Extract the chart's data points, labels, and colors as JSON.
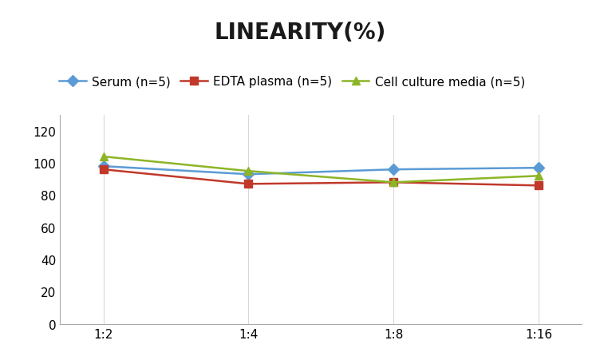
{
  "title": "LINEARITY(%)",
  "x_labels": [
    "1:2",
    "1:4",
    "1:8",
    "1:16"
  ],
  "x_positions": [
    0,
    1,
    2,
    3
  ],
  "series": [
    {
      "label": "Serum (n=5)",
      "values": [
        98,
        93,
        96,
        97
      ],
      "color": "#5b9bd5",
      "marker": "D",
      "linewidth": 1.8
    },
    {
      "label": "EDTA plasma (n=5)",
      "values": [
        96,
        87,
        88,
        86
      ],
      "color": "#c0392b",
      "marker": "s",
      "linewidth": 1.8
    },
    {
      "label": "Cell culture media (n=5)",
      "values": [
        104,
        95,
        88,
        92
      ],
      "color": "#8db526",
      "marker": "^",
      "linewidth": 1.8
    }
  ],
  "ylim": [
    0,
    130
  ],
  "yticks": [
    0,
    20,
    40,
    60,
    80,
    100,
    120
  ],
  "background_color": "#ffffff",
  "title_fontsize": 20,
  "legend_fontsize": 11,
  "tick_fontsize": 11,
  "grid_color": "#d8d8d8"
}
